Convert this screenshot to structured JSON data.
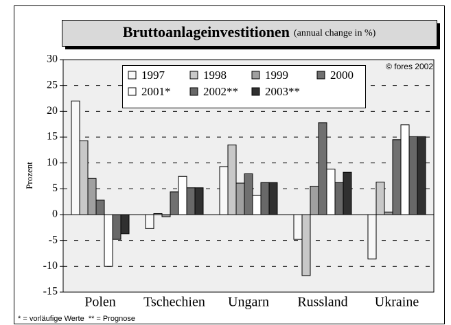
{
  "chart_data": {
    "type": "bar",
    "title": "Bruttoanlageinvestitionen",
    "subtitle": "(annual change in %)",
    "y_label": "Prozent",
    "annotation": "© fores 2002",
    "footnote": "* = vorläufige Werte  ** = Prognose",
    "categories": [
      "Polen",
      "Tschechien",
      "Ungarn",
      "Russland",
      "Ukraine"
    ],
    "series": [
      {
        "name": "1997",
        "color": "#f8f8f8",
        "values": [
          22,
          -2.7,
          9.3,
          -4.8,
          -8.6
        ]
      },
      {
        "name": "1998",
        "color": "#c8c8c8",
        "values": [
          14.3,
          0.2,
          13.5,
          -11.8,
          6.3
        ]
      },
      {
        "name": "1999",
        "color": "#a0a0a0",
        "values": [
          7,
          -0.4,
          6.1,
          5.5,
          0.5
        ]
      },
      {
        "name": "2000",
        "color": "#707070",
        "values": [
          2.8,
          4.4,
          7.9,
          17.8,
          14.5
        ]
      },
      {
        "name": "2001*",
        "color": "#ffffff",
        "values": [
          -10,
          7.4,
          3.7,
          8.8,
          17.4
        ]
      },
      {
        "name": "2002**",
        "color": "#686868",
        "values": [
          -4.8,
          5.2,
          6.2,
          6.2,
          15.1
        ]
      },
      {
        "name": "2003**",
        "color": "#303030",
        "values": [
          -3.7,
          5.2,
          6.2,
          8.2,
          15.1
        ]
      }
    ],
    "ylim": [
      -15,
      30
    ],
    "yticks": [
      -15,
      -10,
      -5,
      0,
      5,
      10,
      15,
      20,
      25,
      30
    ],
    "grid": true
  }
}
